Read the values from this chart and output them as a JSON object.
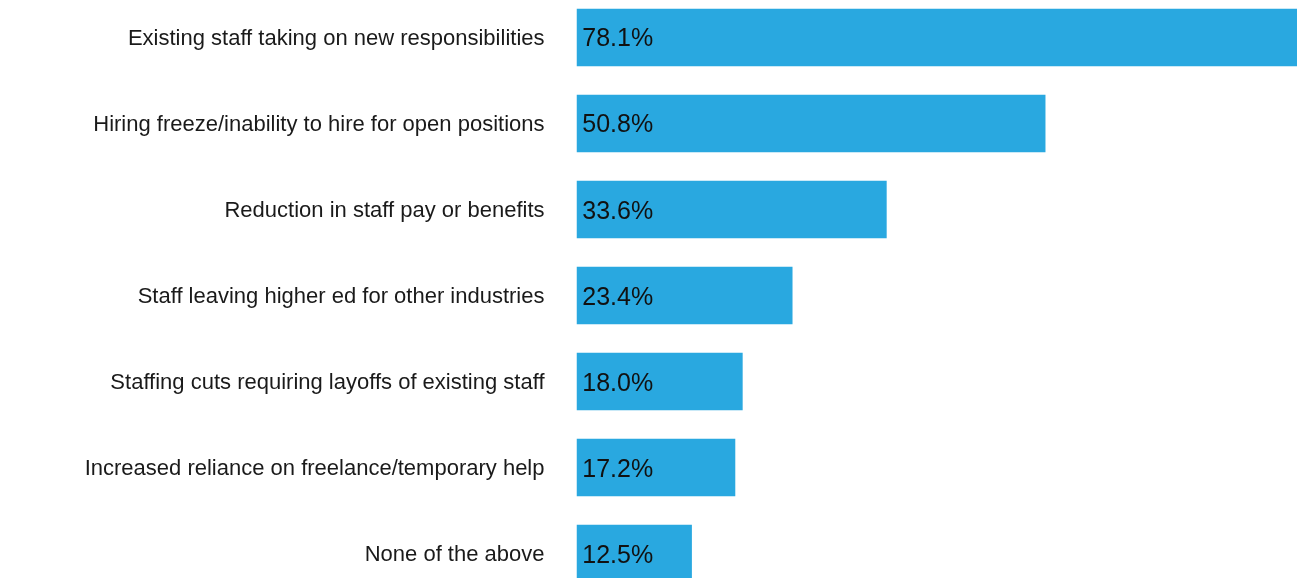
{
  "chart_data": {
    "type": "bar",
    "orientation": "horizontal",
    "categories": [
      "Existing staff taking on new responsibilities",
      "Hiring freeze/inability to hire for open positions",
      "Reduction in staff pay or benefits",
      "Staff leaving higher ed for other industries",
      "Staffing cuts requiring layoffs of existing staff",
      "Increased reliance on freelance/temporary help",
      "None of the above"
    ],
    "values": [
      78.1,
      50.8,
      33.6,
      23.4,
      18.0,
      17.2,
      12.5
    ],
    "value_labels": [
      "78.1%",
      "50.8%",
      "33.6%",
      "23.4%",
      "18.0%",
      "17.2%",
      "12.5%"
    ],
    "color": "#29a8e0"
  }
}
